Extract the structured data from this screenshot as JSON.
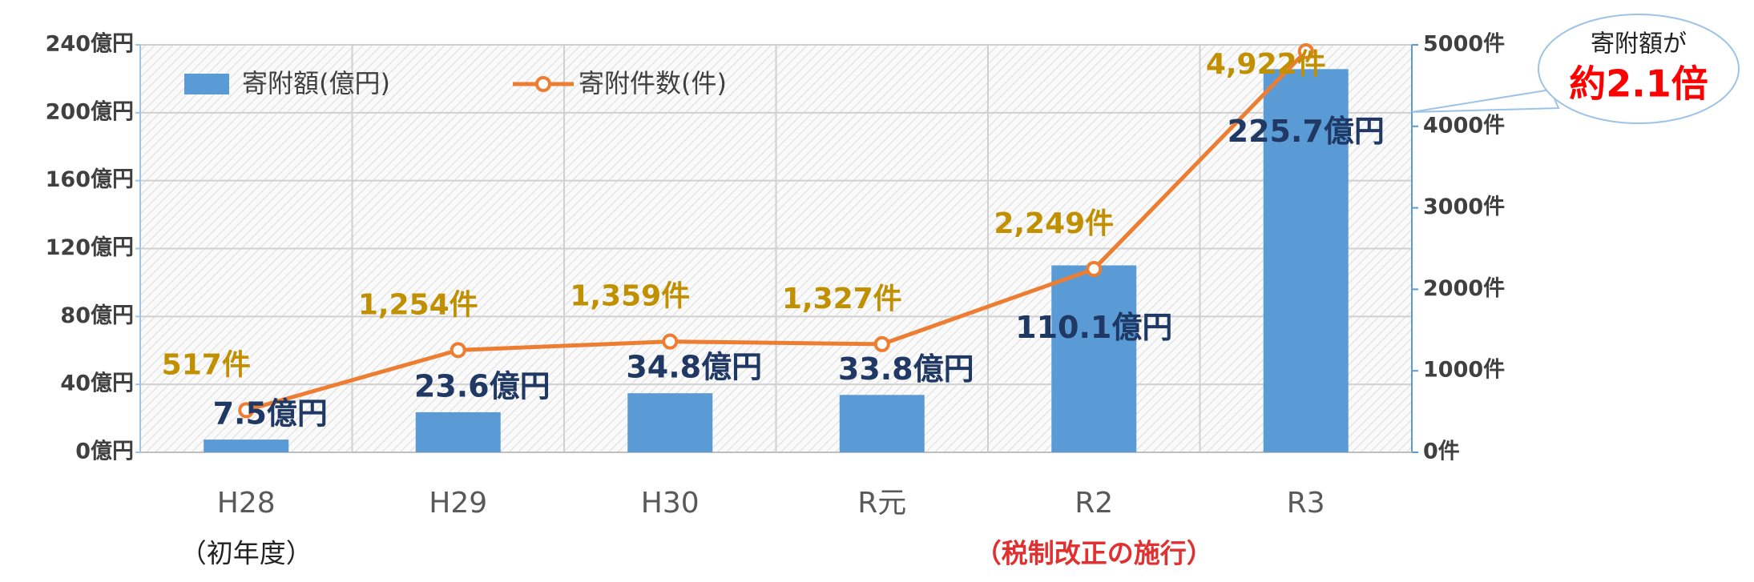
{
  "chart_data": {
    "type": "bar-line",
    "categories": [
      "H28",
      "H29",
      "H30",
      "R元",
      "R2",
      "R3"
    ],
    "category_notes": [
      "（初年度）",
      null,
      null,
      null,
      "（税制改正の施行）",
      null
    ],
    "series": [
      {
        "name": "寄附額(億円)",
        "type": "bar",
        "color": "#5b9bd5",
        "values": [
          7.5,
          23.6,
          34.8,
          33.8,
          110.1,
          225.7
        ],
        "value_labels": [
          "7.5億円",
          "23.6億円",
          "34.8億円",
          "33.8億円",
          "110.1億円",
          "225.7億円"
        ]
      },
      {
        "name": "寄附件数(件)",
        "type": "line",
        "axis": "y2",
        "color": "#ed7d31",
        "values": [
          517,
          1254,
          1359,
          1327,
          2249,
          4922
        ],
        "value_labels": [
          "517件",
          "1,254件",
          "1,359件",
          "1,327件",
          "2,249件",
          "4,922件"
        ]
      }
    ],
    "ylim": [
      0,
      240
    ],
    "yticks": [
      {
        "value": 0,
        "label": "0億円"
      },
      {
        "value": 40,
        "label": "40億円"
      },
      {
        "value": 80,
        "label": "80億円"
      },
      {
        "value": 120,
        "label": "120億円"
      },
      {
        "value": 160,
        "label": "160億円"
      },
      {
        "value": 200,
        "label": "200億円"
      },
      {
        "value": 240,
        "label": "240億円"
      }
    ],
    "y2lim": [
      0,
      5000
    ],
    "y2ticks": [
      {
        "value": 0,
        "label": "0件"
      },
      {
        "value": 1000,
        "label": "1000件"
      },
      {
        "value": 2000,
        "label": "2000件"
      },
      {
        "value": 3000,
        "label": "3000件"
      },
      {
        "value": 4000,
        "label": "4000件"
      },
      {
        "value": 5000,
        "label": "5000件"
      }
    ],
    "grid": true,
    "legend": "top-left",
    "annotations": [
      "寄附額が",
      "約2.1倍"
    ]
  }
}
